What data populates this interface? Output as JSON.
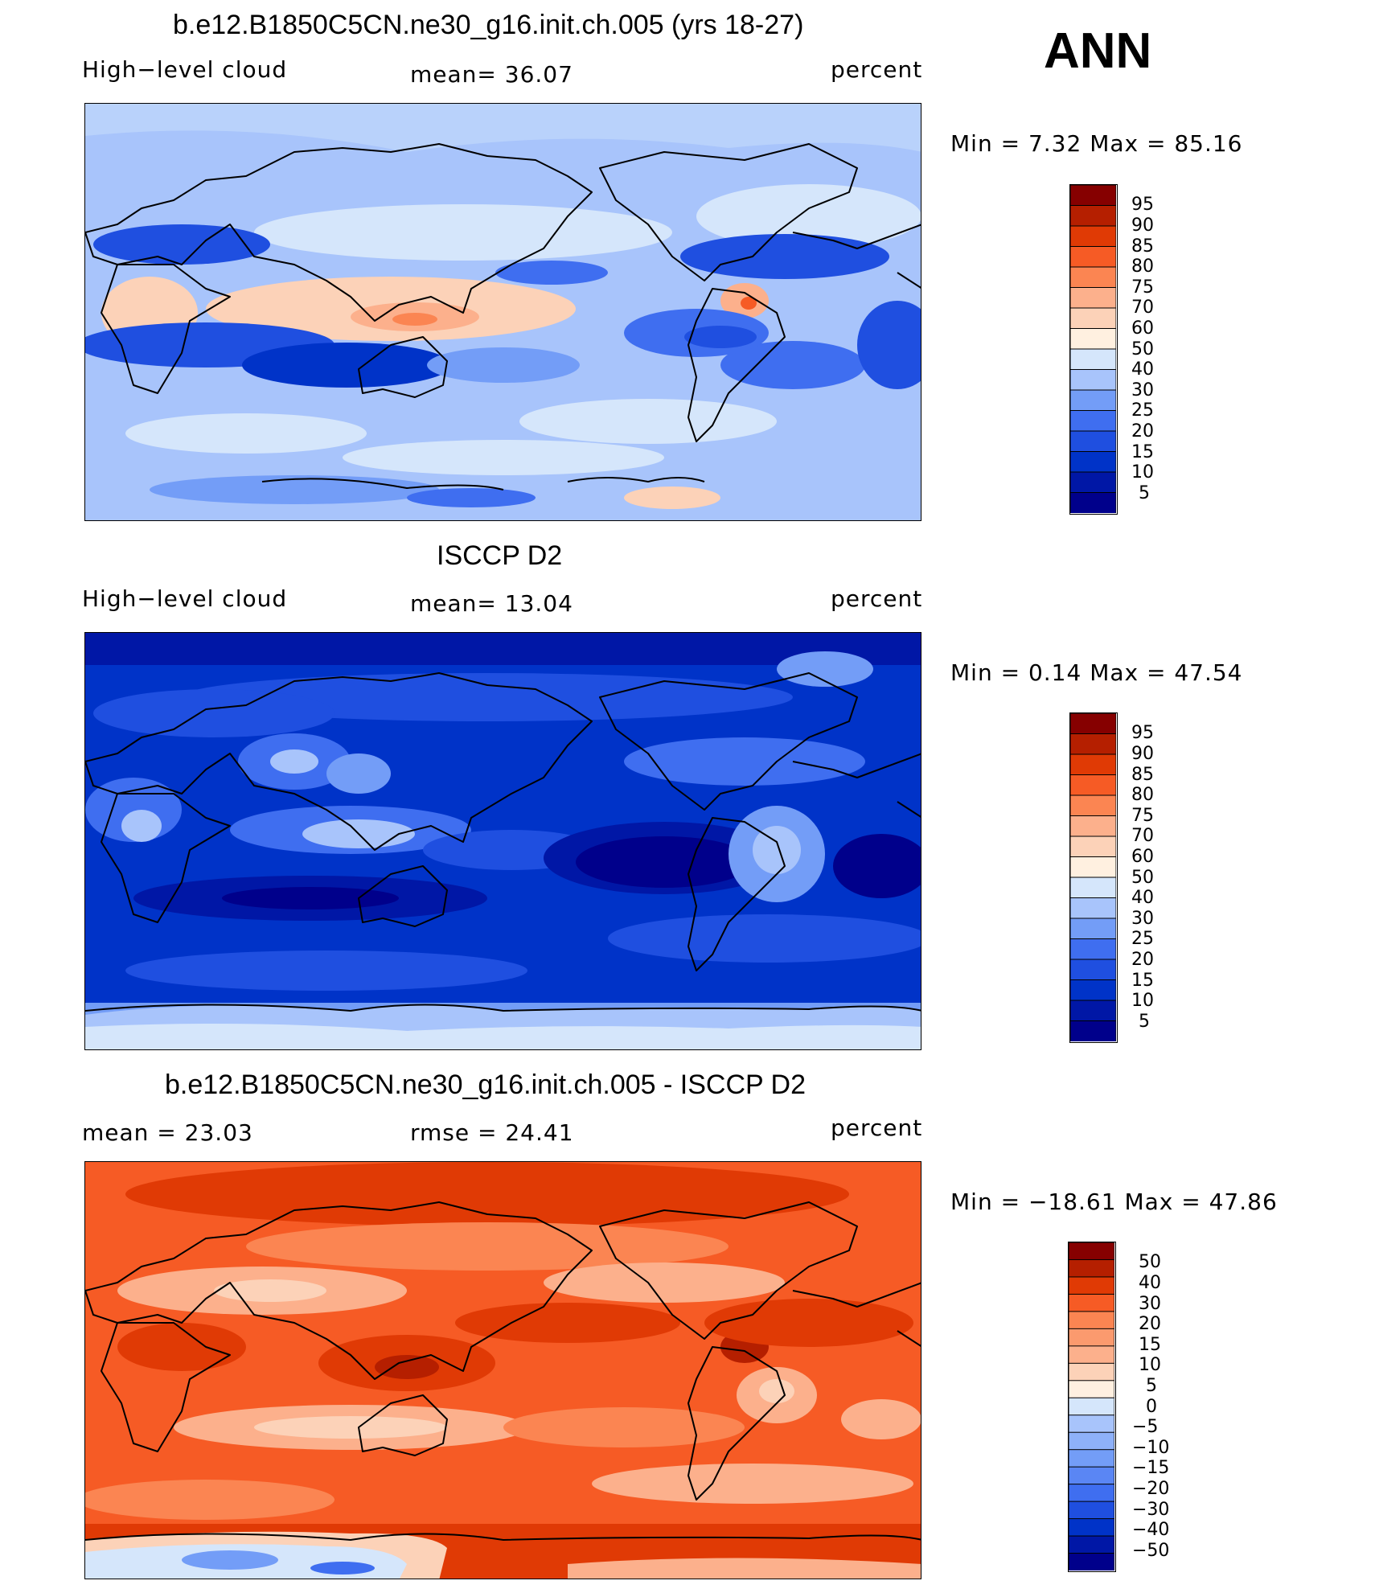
{
  "season": "ANN",
  "colors": {
    "full_scale": [
      "#00008b",
      "#0017a6",
      "#0033c8",
      "#1f4fe0",
      "#3f6ef0",
      "#739df7",
      "#a8c4fb",
      "#d5e6fb",
      "#fff0e0",
      "#fcd2b8",
      "#fcb08c",
      "#fb8552",
      "#f65b25",
      "#e03a05",
      "#b51f00",
      "#860000"
    ],
    "diff_scale": [
      "#00008b",
      "#0017a6",
      "#0033c8",
      "#1f4fe0",
      "#3f6ef0",
      "#5a86f4",
      "#739df7",
      "#8eb1f9",
      "#a8c4fb",
      "#d5e6fb",
      "#fff0e0",
      "#fcd2b8",
      "#fcb08c",
      "#fb9a6e",
      "#fb8552",
      "#f65b25",
      "#e03a05",
      "#b51f00",
      "#860000"
    ]
  },
  "panels": [
    {
      "title": "b.e12.B1850C5CN.ne30_g16.init.ch.005 (yrs 18-27)",
      "left_label": "High−level cloud",
      "mid_label": "mean=   36.07",
      "right_label": "percent",
      "minmax": "Min =    7.32 Max =   85.16"
    },
    {
      "title": "ISCCP D2",
      "left_label": "High−level cloud",
      "mid_label": "mean=   13.04",
      "right_label": "percent",
      "minmax": "Min =    0.14 Max =   47.54"
    },
    {
      "title": "b.e12.B1850C5CN.ne30_g16.init.ch.005 - ISCCP D2",
      "left_label": "mean =   23.03",
      "mid_label": "rmse =   24.41",
      "right_label": "percent",
      "minmax": "Min = −18.61  Max =   47.86"
    }
  ],
  "chart_data": [
    {
      "type": "heatmap",
      "title": "b.e12.B1850C5CN.ne30_g16.init.ch.005 (yrs 18-27)",
      "variable": "High−level cloud",
      "units": "percent",
      "mean": 36.07,
      "min": 7.32,
      "max": 85.16,
      "colorbar_levels": [
        "95",
        "90",
        "85",
        "80",
        "75",
        "70",
        "60",
        "50",
        "40",
        "30",
        "25",
        "20",
        "15",
        "10",
        "5"
      ]
    },
    {
      "type": "heatmap",
      "title": "ISCCP D2",
      "variable": "High−level cloud",
      "units": "percent",
      "mean": 13.04,
      "min": 0.14,
      "max": 47.54,
      "colorbar_levels": [
        "95",
        "90",
        "85",
        "80",
        "75",
        "70",
        "60",
        "50",
        "40",
        "30",
        "25",
        "20",
        "15",
        "10",
        "5"
      ]
    },
    {
      "type": "heatmap",
      "title": "b.e12.B1850C5CN.ne30_g16.init.ch.005 - ISCCP D2",
      "units": "percent",
      "mean": 23.03,
      "rmse": 24.41,
      "min": -18.61,
      "max": 47.86,
      "colorbar_levels": [
        "50",
        "40",
        "30",
        "20",
        "15",
        "10",
        "5",
        "0",
        "−5",
        "−10",
        "−15",
        "−20",
        "−30",
        "−40",
        "−50"
      ]
    }
  ]
}
